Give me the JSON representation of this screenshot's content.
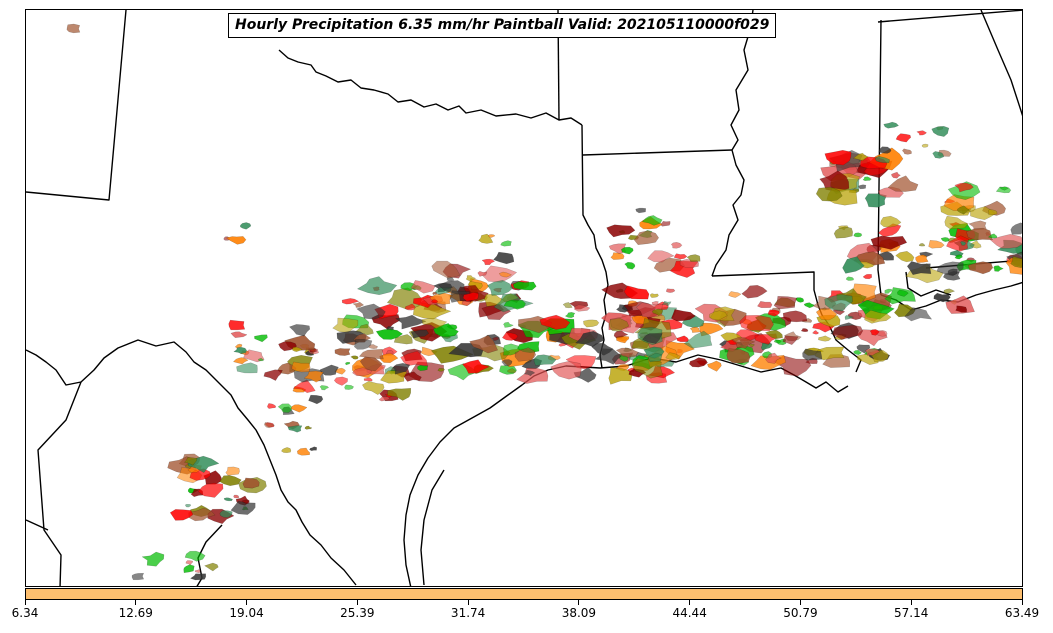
{
  "title": "Hourly Precipitation 6.35 mm/hr Paintball Valid: 202105110000f029",
  "colorbar": {
    "color": "#fdbf6f",
    "ticks": [
      "6.34",
      "12.69",
      "19.04",
      "25.39",
      "31.74",
      "38.09",
      "44.44",
      "50.79",
      "57.14",
      "63.49"
    ]
  },
  "member_colors": [
    "#ff0000",
    "#ff8000",
    "#00bb00",
    "#808000",
    "#8b0000",
    "#333333",
    "#2e8b57",
    "#b8a000",
    "#e05050",
    "#a0522d"
  ]
}
